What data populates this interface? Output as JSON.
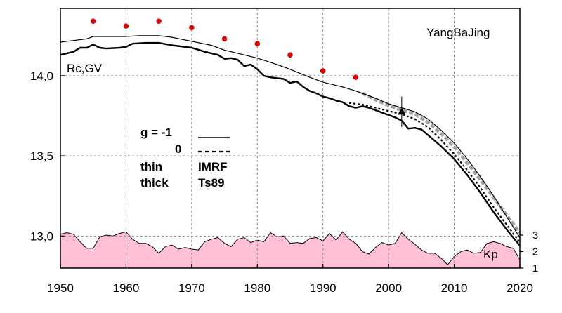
{
  "chart_data": {
    "type": "line",
    "title": "",
    "station": "YangBaJing",
    "ylabel_annotation": "Rc,GV",
    "kp_label": "Kp",
    "xlim": [
      1950,
      2020
    ],
    "ylim": [
      12.8,
      14.42
    ],
    "x_ticks": [
      "1950",
      "1960",
      "1970",
      "1980",
      "1990",
      "2000",
      "2010",
      "2020"
    ],
    "y_ticks": [
      "13,0",
      "13,5",
      "14,0"
    ],
    "y_tick_values": [
      13.0,
      13.5,
      14.0
    ],
    "kp_ticks": [
      "1",
      "2",
      "3"
    ],
    "kp_tick_values": [
      1,
      2,
      3
    ],
    "kp_axis_range": [
      1,
      3
    ],
    "grid": true,
    "legend": {
      "row1_label": "g  = -1",
      "row2_label": "0",
      "row3_left": "thin",
      "row3_right": "IMRF",
      "row4_left": "thick",
      "row4_right": "Ts89"
    },
    "series": [
      {
        "name": "thin",
        "style": "solid-thin",
        "color": "#000000",
        "points": [
          [
            1950,
            14.21
          ],
          [
            1952,
            14.22
          ],
          [
            1954,
            14.23
          ],
          [
            1955,
            14.245
          ],
          [
            1957,
            14.245
          ],
          [
            1960,
            14.245
          ],
          [
            1962,
            14.25
          ],
          [
            1965,
            14.25
          ],
          [
            1967,
            14.24
          ],
          [
            1970,
            14.215
          ],
          [
            1973,
            14.19
          ],
          [
            1975,
            14.16
          ],
          [
            1978,
            14.13
          ],
          [
            1980,
            14.11
          ],
          [
            1983,
            14.07
          ],
          [
            1985,
            14.04
          ],
          [
            1988,
            13.99
          ],
          [
            1990,
            13.96
          ],
          [
            1993,
            13.93
          ],
          [
            1995,
            13.905
          ],
          [
            1998,
            13.86
          ],
          [
            2000,
            13.825
          ],
          [
            2002,
            13.8
          ],
          [
            2004,
            13.775
          ],
          [
            2006,
            13.73
          ],
          [
            2008,
            13.66
          ],
          [
            2010,
            13.58
          ],
          [
            2012,
            13.48
          ],
          [
            2014,
            13.37
          ],
          [
            2016,
            13.25
          ],
          [
            2018,
            13.12
          ],
          [
            2020,
            12.99
          ]
        ]
      },
      {
        "name": "thick",
        "style": "solid-thick",
        "color": "#000000",
        "points": [
          [
            1950,
            14.13
          ],
          [
            1951,
            14.14
          ],
          [
            1952,
            14.15
          ],
          [
            1953,
            14.175
          ],
          [
            1954,
            14.175
          ],
          [
            1955,
            14.195
          ],
          [
            1956,
            14.175
          ],
          [
            1957,
            14.17
          ],
          [
            1959,
            14.175
          ],
          [
            1960,
            14.18
          ],
          [
            1961,
            14.2
          ],
          [
            1963,
            14.205
          ],
          [
            1965,
            14.205
          ],
          [
            1967,
            14.19
          ],
          [
            1969,
            14.18
          ],
          [
            1970,
            14.175
          ],
          [
            1972,
            14.15
          ],
          [
            1974,
            14.13
          ],
          [
            1975,
            14.105
          ],
          [
            1976,
            14.11
          ],
          [
            1977,
            14.1
          ],
          [
            1978,
            14.06
          ],
          [
            1979,
            14.07
          ],
          [
            1980,
            14.04
          ],
          [
            1981,
            14.0
          ],
          [
            1982,
            13.99
          ],
          [
            1984,
            13.98
          ],
          [
            1985,
            13.955
          ],
          [
            1986,
            13.965
          ],
          [
            1987,
            13.93
          ],
          [
            1988,
            13.905
          ],
          [
            1989,
            13.89
          ],
          [
            1990,
            13.87
          ],
          [
            1991,
            13.86
          ],
          [
            1992,
            13.845
          ],
          [
            1993,
            13.835
          ],
          [
            1994,
            13.81
          ],
          [
            1995,
            13.8
          ],
          [
            1996,
            13.81
          ],
          [
            1997,
            13.8
          ],
          [
            1998,
            13.785
          ],
          [
            1999,
            13.77
          ],
          [
            2000,
            13.755
          ],
          [
            2001,
            13.74
          ],
          [
            2002,
            13.72
          ],
          [
            2003,
            13.67
          ],
          [
            2004,
            13.675
          ],
          [
            2005,
            13.665
          ],
          [
            2006,
            13.63
          ],
          [
            2008,
            13.56
          ],
          [
            2010,
            13.48
          ],
          [
            2012,
            13.38
          ],
          [
            2014,
            13.27
          ],
          [
            2016,
            13.15
          ],
          [
            2018,
            13.04
          ],
          [
            2020,
            12.94
          ]
        ]
      },
      {
        "name": "dashed",
        "style": "dashed",
        "color": "#000000",
        "points": [
          [
            1994,
            13.83
          ],
          [
            1996,
            13.82
          ],
          [
            1998,
            13.8
          ],
          [
            2000,
            13.78
          ],
          [
            2002,
            13.76
          ],
          [
            2004,
            13.73
          ],
          [
            2006,
            13.68
          ],
          [
            2008,
            13.6
          ],
          [
            2010,
            13.51
          ],
          [
            2012,
            13.41
          ],
          [
            2014,
            13.3
          ],
          [
            2016,
            13.18
          ],
          [
            2018,
            13.07
          ],
          [
            2020,
            12.96
          ]
        ]
      },
      {
        "name": "grey-band",
        "style": "dashed-grey-thick",
        "color": "#9a9a9a",
        "points": [
          [
            1996,
            13.89
          ],
          [
            1998,
            13.85
          ],
          [
            2000,
            13.815
          ],
          [
            2002,
            13.785
          ],
          [
            2004,
            13.76
          ],
          [
            2006,
            13.71
          ],
          [
            2008,
            13.64
          ],
          [
            2010,
            13.555
          ],
          [
            2012,
            13.455
          ],
          [
            2014,
            13.35
          ],
          [
            2016,
            13.24
          ],
          [
            2018,
            13.13
          ],
          [
            2020,
            13.02
          ]
        ]
      }
    ],
    "red_points": [
      [
        1955,
        14.34
      ],
      [
        1960,
        14.31
      ],
      [
        1965,
        14.34
      ],
      [
        1970,
        14.3
      ],
      [
        1975,
        14.23
      ],
      [
        1980,
        14.2
      ],
      [
        1985,
        14.13
      ],
      [
        1990,
        14.03
      ],
      [
        1995,
        13.99
      ]
    ],
    "triangle_point": {
      "x": 2002,
      "y": 13.775,
      "err_low": 13.68,
      "err_high": 13.87
    },
    "kp_series": {
      "name": "Kp",
      "color": "#ffc0d6",
      "x": [
        1950,
        1951,
        1952,
        1953,
        1954,
        1955,
        1956,
        1957,
        1958,
        1959,
        1960,
        1961,
        1962,
        1963,
        1964,
        1965,
        1966,
        1967,
        1968,
        1969,
        1970,
        1971,
        1972,
        1973,
        1974,
        1975,
        1976,
        1977,
        1978,
        1979,
        1980,
        1981,
        1982,
        1983,
        1984,
        1985,
        1986,
        1987,
        1988,
        1989,
        1990,
        1991,
        1992,
        1993,
        1994,
        1995,
        1996,
        1997,
        1998,
        1999,
        2000,
        2001,
        2002,
        2003,
        2004,
        2005,
        2006,
        2007,
        2008,
        2009,
        2010,
        2011,
        2012,
        2013,
        2014,
        2015,
        2016,
        2017,
        2018,
        2019,
        2020
      ],
      "values": [
        3.05,
        3.15,
        3.05,
        2.6,
        2.2,
        2.2,
        2.9,
        3.0,
        2.95,
        3.1,
        3.2,
        2.75,
        2.5,
        2.5,
        2.3,
        1.9,
        2.3,
        2.4,
        2.15,
        2.25,
        2.15,
        2.1,
        2.6,
        2.75,
        2.85,
        2.5,
        2.3,
        2.75,
        2.85,
        2.55,
        2.7,
        2.6,
        3.15,
        2.9,
        2.95,
        2.5,
        2.55,
        2.5,
        2.8,
        2.85,
        2.65,
        3.1,
        2.7,
        3.2,
        2.75,
        2.5,
        2.0,
        1.85,
        2.25,
        2.55,
        2.4,
        2.5,
        3.15,
        2.75,
        2.45,
        2.1,
        1.9,
        1.9,
        1.6,
        1.2,
        1.7,
        2.0,
        2.1,
        1.9,
        1.95,
        2.5,
        2.6,
        2.5,
        2.3,
        2.2,
        1.5
      ]
    }
  }
}
